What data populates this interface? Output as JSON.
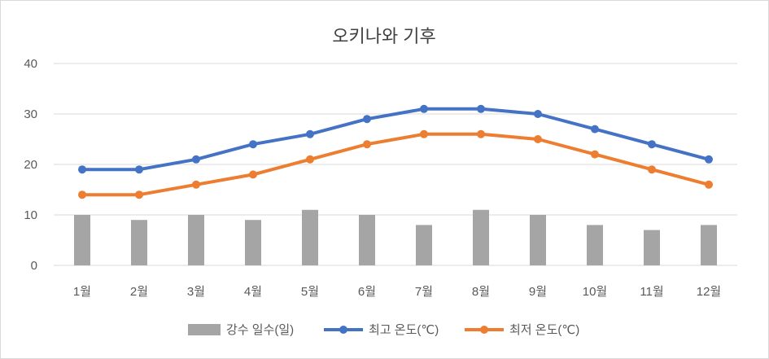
{
  "chart_data": {
    "type": "bar",
    "title": "오키나와 기후",
    "categories": [
      "1월",
      "2월",
      "3월",
      "4월",
      "5월",
      "6월",
      "7월",
      "8월",
      "9월",
      "10월",
      "11월",
      "12월"
    ],
    "ylim": [
      0,
      40
    ],
    "yticks": [
      "0",
      "10",
      "20",
      "30",
      "40"
    ],
    "grid": true,
    "legend_position": "bottom",
    "series": [
      {
        "name": "강수 일수(일)",
        "kind": "bar",
        "color": "#a5a5a5",
        "values": [
          10,
          9,
          10,
          9,
          11,
          10,
          8,
          11,
          10,
          8,
          7,
          8
        ]
      },
      {
        "name": "최고 온도(℃)",
        "kind": "line",
        "color": "#4472c4",
        "values": [
          19,
          19,
          21,
          24,
          26,
          29,
          31,
          31,
          30,
          27,
          24,
          21
        ]
      },
      {
        "name": "최저 온도(℃)",
        "kind": "line",
        "color": "#ed7d31",
        "values": [
          14,
          14,
          16,
          18,
          21,
          24,
          26,
          26,
          25,
          22,
          19,
          16
        ]
      }
    ]
  }
}
